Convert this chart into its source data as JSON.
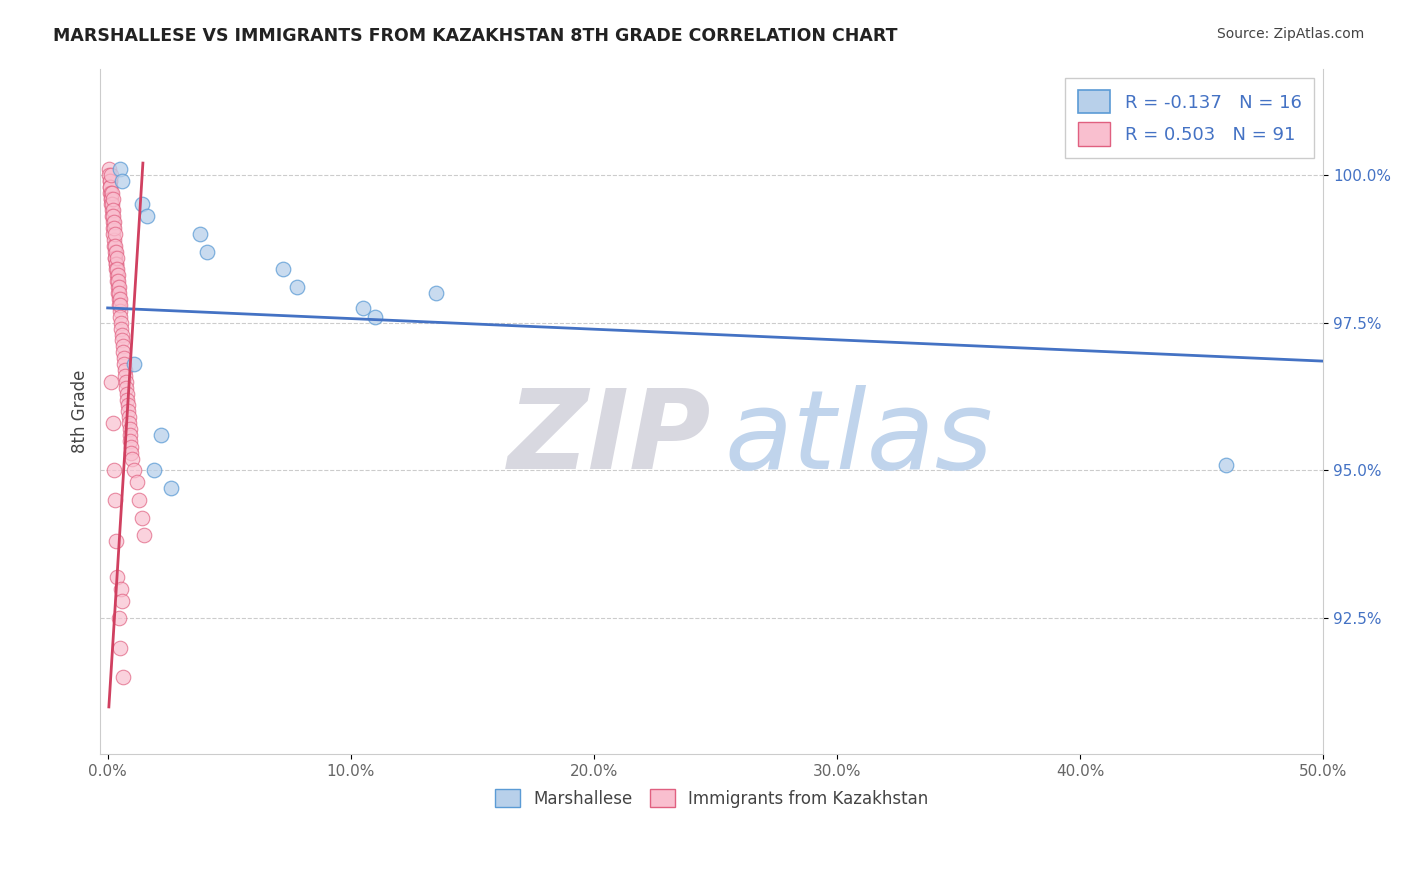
{
  "title": "MARSHALLESE VS IMMIGRANTS FROM KAZAKHSTAN 8TH GRADE CORRELATION CHART",
  "source": "Source: ZipAtlas.com",
  "ylabel": "8th Grade",
  "xlim_min": -0.3,
  "xlim_max": 50.0,
  "ylim_min": 90.2,
  "ylim_max": 101.8,
  "yticks": [
    92.5,
    95.0,
    97.5,
    100.0
  ],
  "ytick_labels": [
    "92.5%",
    "95.0%",
    "97.5%",
    "100.0%"
  ],
  "xticks": [
    0.0,
    10.0,
    20.0,
    30.0,
    40.0,
    50.0
  ],
  "xtick_labels": [
    "0.0%",
    "10.0%",
    "20.0%",
    "30.0%",
    "40.0%",
    "50.0%"
  ],
  "blue_fill": "#b8d0ea",
  "blue_edge": "#5b9bd5",
  "pink_fill": "#f9bfcf",
  "pink_edge": "#e06080",
  "blue_line_color": "#4472c4",
  "pink_line_color": "#d04060",
  "stat_text_color": "#4472c4",
  "blue_R": -0.137,
  "blue_N": 16,
  "pink_R": 0.503,
  "pink_N": 91,
  "legend_label_blue": "Marshallese",
  "legend_label_pink": "Immigrants from Kazakhstan",
  "blue_scatter_x": [
    0.5,
    0.6,
    1.4,
    1.6,
    3.8,
    4.1,
    7.2,
    7.8,
    10.5,
    11.0,
    13.5,
    1.9,
    2.6,
    46.0,
    1.1,
    2.2
  ],
  "blue_scatter_y": [
    100.1,
    99.9,
    99.5,
    99.3,
    99.0,
    98.7,
    98.4,
    98.1,
    97.75,
    97.6,
    98.0,
    95.0,
    94.7,
    95.1,
    96.8,
    95.6
  ],
  "pink_scatter_x": [
    0.05,
    0.07,
    0.08,
    0.09,
    0.1,
    0.1,
    0.11,
    0.12,
    0.13,
    0.14,
    0.15,
    0.15,
    0.16,
    0.17,
    0.18,
    0.19,
    0.2,
    0.2,
    0.21,
    0.22,
    0.23,
    0.24,
    0.25,
    0.26,
    0.27,
    0.28,
    0.29,
    0.3,
    0.3,
    0.31,
    0.32,
    0.33,
    0.34,
    0.35,
    0.36,
    0.37,
    0.38,
    0.39,
    0.4,
    0.41,
    0.42,
    0.43,
    0.44,
    0.45,
    0.46,
    0.47,
    0.48,
    0.49,
    0.5,
    0.5,
    0.52,
    0.54,
    0.56,
    0.58,
    0.6,
    0.62,
    0.64,
    0.66,
    0.68,
    0.7,
    0.72,
    0.74,
    0.76,
    0.78,
    0.8,
    0.82,
    0.84,
    0.86,
    0.88,
    0.9,
    0.92,
    0.94,
    0.96,
    0.98,
    1.0,
    1.1,
    1.2,
    1.3,
    1.4,
    1.5,
    0.15,
    0.2,
    0.25,
    0.3,
    0.35,
    0.4,
    0.45,
    0.5,
    0.55,
    0.6,
    0.65
  ],
  "pink_scatter_y": [
    100.1,
    100.0,
    99.9,
    99.9,
    99.8,
    99.7,
    99.8,
    99.7,
    99.6,
    99.6,
    100.0,
    99.5,
    99.7,
    99.4,
    99.5,
    99.3,
    99.6,
    99.2,
    99.4,
    99.1,
    99.3,
    99.0,
    99.2,
    98.9,
    99.1,
    98.8,
    99.0,
    98.7,
    98.6,
    98.8,
    98.6,
    98.7,
    98.5,
    98.5,
    98.4,
    98.6,
    98.3,
    98.4,
    98.2,
    98.3,
    98.1,
    98.2,
    98.0,
    98.1,
    97.9,
    98.0,
    97.8,
    97.9,
    97.7,
    97.8,
    97.6,
    97.5,
    97.4,
    97.3,
    97.2,
    97.1,
    97.0,
    96.9,
    96.8,
    96.7,
    96.6,
    96.5,
    96.4,
    96.3,
    96.2,
    96.1,
    96.0,
    95.9,
    95.8,
    95.7,
    95.6,
    95.5,
    95.4,
    95.3,
    95.2,
    95.0,
    94.8,
    94.5,
    94.2,
    93.9,
    96.5,
    95.8,
    95.0,
    94.5,
    93.8,
    93.2,
    92.5,
    92.0,
    93.0,
    92.8,
    91.5
  ],
  "blue_trend_x0": 0.0,
  "blue_trend_x1": 50.0,
  "blue_trend_y0": 97.75,
  "blue_trend_y1": 96.85,
  "pink_trend_x0": 0.05,
  "pink_trend_x1": 1.45,
  "pink_trend_y0": 91.0,
  "pink_trend_y1": 100.2
}
